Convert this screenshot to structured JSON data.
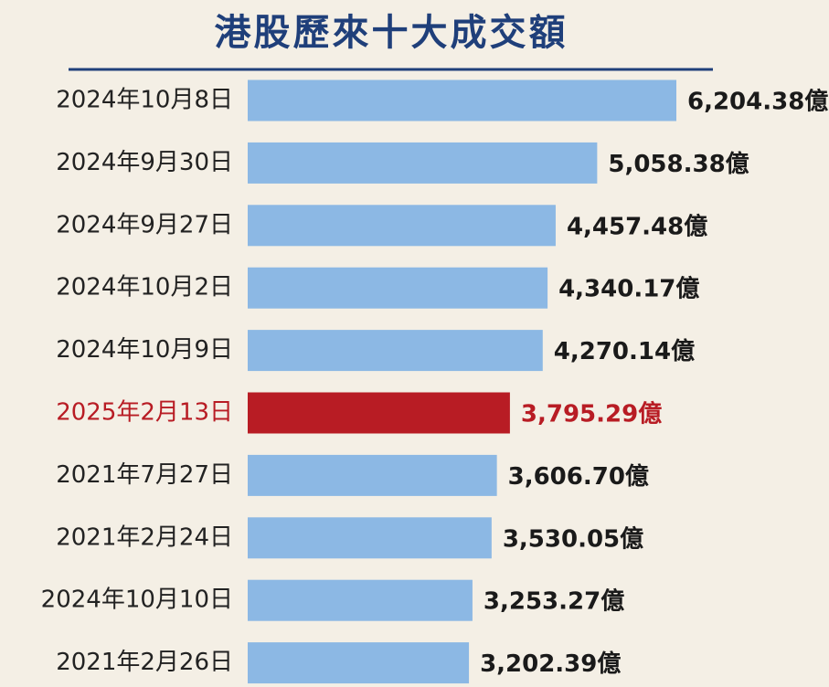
{
  "chart_data": {
    "type": "hbar",
    "title": "港股歷來十大成交額",
    "categories": [
      "2024年10月8日",
      "2024年9月30日",
      "2024年9月27日",
      "2024年10月2日",
      "2024年10月9日",
      "2025年2月13日",
      "2021年7月27日",
      "2021年2月24日",
      "2024年10月10日",
      "2021年2月26日"
    ],
    "values": [
      6204.38,
      5058.38,
      4457.48,
      4340.17,
      4270.14,
      3795.29,
      3606.7,
      3530.05,
      3253.27,
      3202.39
    ],
    "value_labels": [
      "6,204.38億",
      "5,058.38億",
      "4,457.48億",
      "4,340.17億",
      "4,270.14億",
      "3,795.29億",
      "3,606.70億",
      "3,530.05億",
      "3,253.27億",
      "3,202.39億"
    ],
    "color": "#8cb8e4",
    "highlight": {
      "index": 5,
      "color": "#b81c24"
    }
  }
}
